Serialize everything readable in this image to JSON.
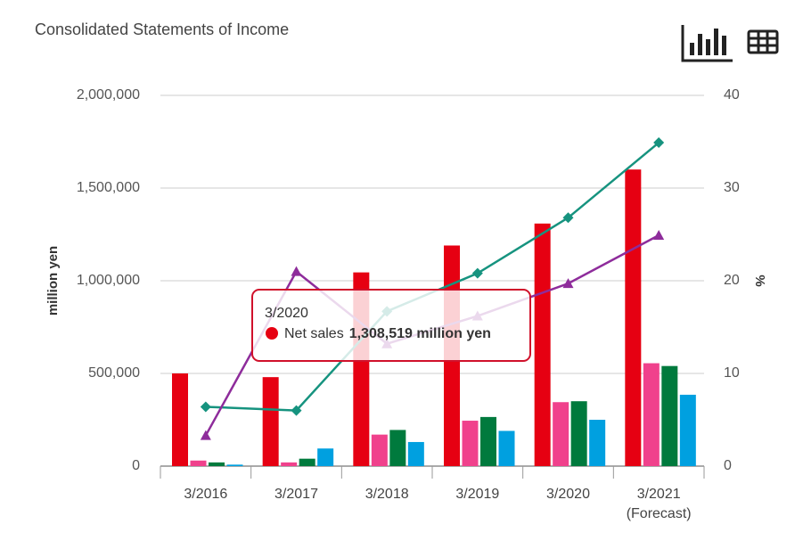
{
  "chart_data": {
    "type": "bar",
    "title": "Consolidated Statements of Income",
    "categories": [
      "3/2016",
      "3/2017",
      "3/2018",
      "3/2019",
      "3/2020",
      "3/2021"
    ],
    "annotations": [
      "(Forecast)"
    ],
    "y_label": "million yen",
    "y2_label": "%",
    "ylim": [
      0,
      2000000
    ],
    "yticks": [
      0,
      {
        "value": 500000,
        "label": "500,000"
      },
      {
        "value": 1000000,
        "label": "1,000,000"
      },
      {
        "value": 1500000,
        "label": "1,500,000"
      },
      {
        "value": 2000000,
        "label": "2,000,000"
      }
    ],
    "y2lim": [
      0,
      40
    ],
    "y2ticks": [
      0,
      10,
      20,
      30,
      40
    ],
    "grid": true,
    "series": [
      {
        "name": "Net sales",
        "type": "bar",
        "color": "#e60012",
        "values": [
          500000,
          480000,
          1045000,
          1190000,
          1308519,
          1600000
        ]
      },
      {
        "type": "bar",
        "color": "#f0418c",
        "values": [
          30000,
          20000,
          170000,
          245000,
          345000,
          555000
        ]
      },
      {
        "type": "bar",
        "color": "#007a3d",
        "values": [
          20000,
          40000,
          195000,
          265000,
          350000,
          540000
        ]
      },
      {
        "type": "bar",
        "color": "#00a0e0",
        "values": [
          8000,
          95000,
          130000,
          190000,
          250000,
          385000
        ]
      },
      {
        "type": "line",
        "axis": "y2",
        "marker": "diamond",
        "color": "#16937f",
        "values": [
          6.4,
          6.0,
          16.7,
          20.8,
          26.8,
          34.9
        ]
      },
      {
        "type": "line",
        "axis": "y2",
        "marker": "triangle",
        "color": "#8e2c9b",
        "values": [
          3.3,
          21.0,
          13.2,
          16.2,
          19.7,
          24.9
        ]
      }
    ],
    "tooltip": {
      "label": "1,308,519 million yen"
    }
  }
}
